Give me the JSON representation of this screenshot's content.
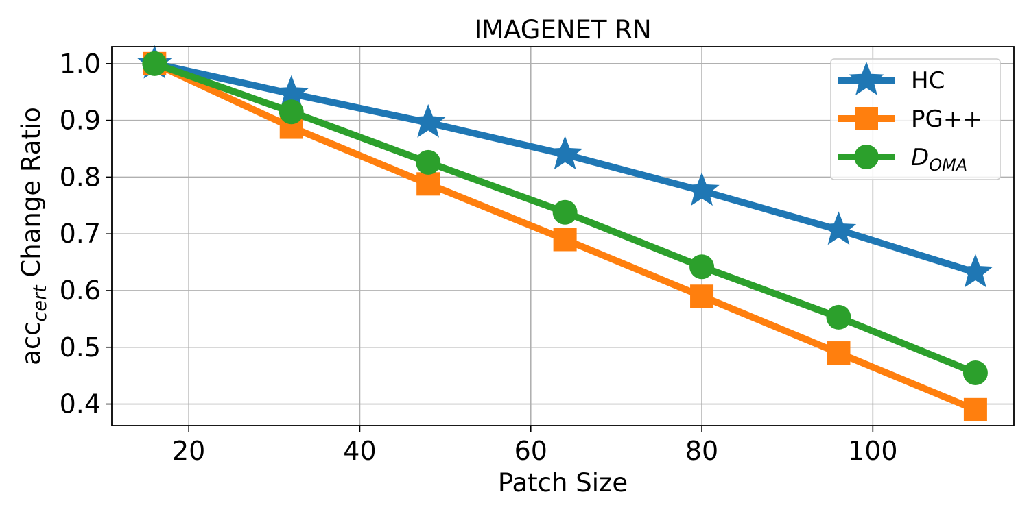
{
  "chart_data": {
    "type": "line",
    "title": "IMAGENET RN",
    "xlabel": "Patch Size",
    "ylabel": {
      "main": "acc",
      "subscript": "cert",
      "suffix": " Change Ratio"
    },
    "xlim": [
      11,
      116.5
    ],
    "ylim": [
      0.362,
      1.03
    ],
    "xticks": [
      20,
      40,
      60,
      80,
      100
    ],
    "yticks": [
      0.4,
      0.5,
      0.6,
      0.7,
      0.8,
      0.9,
      1.0
    ],
    "x": [
      16,
      32,
      48,
      64,
      80,
      96,
      112
    ],
    "grid": true,
    "legend_position": "upper right",
    "series": [
      {
        "name": "HC",
        "name_main": "HC",
        "name_sub": "",
        "italic": false,
        "marker": "star",
        "color": "#1f77b4",
        "values": [
          1.0,
          0.947,
          0.896,
          0.84,
          0.776,
          0.707,
          0.632
        ]
      },
      {
        "name": "PG++",
        "name_main": "PG++",
        "name_sub": "",
        "italic": false,
        "marker": "square",
        "color": "#ff7f0e",
        "values": [
          1.0,
          0.888,
          0.788,
          0.69,
          0.59,
          0.49,
          0.39
        ]
      },
      {
        "name": "D_OMA",
        "name_main": "D",
        "name_sub": "OMA",
        "italic": true,
        "marker": "circle",
        "color": "#2ca02c",
        "values": [
          1.0,
          0.915,
          0.826,
          0.738,
          0.642,
          0.553,
          0.455
        ]
      }
    ]
  }
}
